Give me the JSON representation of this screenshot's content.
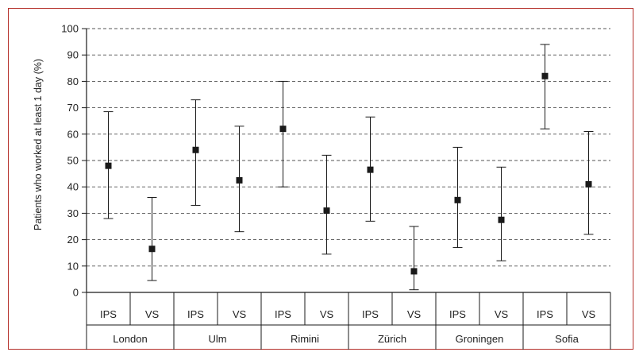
{
  "chart_data": {
    "type": "scatter",
    "title": "",
    "xlabel": "",
    "ylabel": "Patients who worked at least 1 day (%)",
    "ylim": [
      0,
      100
    ],
    "yticks": [
      0,
      10,
      20,
      30,
      40,
      50,
      60,
      70,
      80,
      90,
      100
    ],
    "grid": "horizontal dashed",
    "groups": [
      "London",
      "Ulm",
      "Rimini",
      "Zürich",
      "Groningen",
      "Sofia"
    ],
    "categories": [
      "IPS",
      "VS",
      "IPS",
      "VS",
      "IPS",
      "VS",
      "IPS",
      "VS",
      "IPS",
      "VS",
      "IPS",
      "VS"
    ],
    "points": [
      {
        "group": "London",
        "category": "IPS",
        "value": 48,
        "lower": 28,
        "upper": 68.5
      },
      {
        "group": "London",
        "category": "VS",
        "value": 16.5,
        "lower": 4.5,
        "upper": 36
      },
      {
        "group": "Ulm",
        "category": "IPS",
        "value": 54,
        "lower": 33,
        "upper": 73
      },
      {
        "group": "Ulm",
        "category": "VS",
        "value": 42.5,
        "lower": 23,
        "upper": 63
      },
      {
        "group": "Rimini",
        "category": "IPS",
        "value": 62,
        "lower": 40,
        "upper": 80
      },
      {
        "group": "Rimini",
        "category": "VS",
        "value": 31,
        "lower": 14.5,
        "upper": 52
      },
      {
        "group": "Zürich",
        "category": "IPS",
        "value": 46.5,
        "lower": 27,
        "upper": 66.5
      },
      {
        "group": "Zürich",
        "category": "VS",
        "value": 8,
        "lower": 1,
        "upper": 25
      },
      {
        "group": "Groningen",
        "category": "IPS",
        "value": 35,
        "lower": 17,
        "upper": 55
      },
      {
        "group": "Groningen",
        "category": "VS",
        "value": 27.5,
        "lower": 12,
        "upper": 47.5
      },
      {
        "group": "Sofia",
        "category": "IPS",
        "value": 82,
        "lower": 62,
        "upper": 94
      },
      {
        "group": "Sofia",
        "category": "VS",
        "value": 41,
        "lower": 22,
        "upper": 61
      }
    ]
  },
  "colors": {
    "frame": "#b5302b",
    "marker": "#1a1a1a",
    "lines": "#1a1a1a",
    "grid": "#555555"
  }
}
